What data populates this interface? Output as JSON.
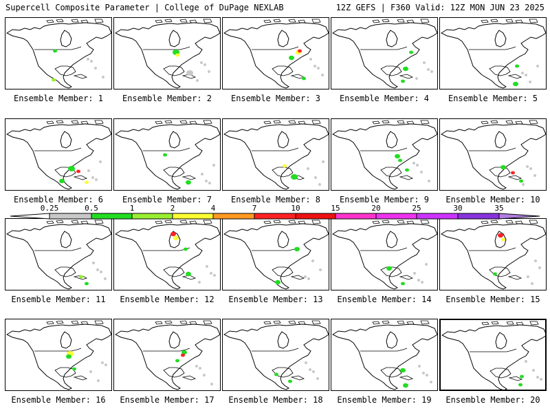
{
  "header": {
    "title_left": "Supercell Composite Parameter | College of DuPage NEXLAB",
    "title_right": "12Z GEFS | F360 Valid: 12Z MON JUN 23 2025"
  },
  "legend": {
    "levels": [
      "0.25",
      "0.5",
      "1",
      "2",
      "4",
      "7",
      "10",
      "15",
      "20",
      "25",
      "30",
      "35"
    ],
    "colors": [
      "#c8c8c8",
      "#22dd22",
      "#99ee33",
      "#ffff33",
      "#ff9922",
      "#ff2222",
      "#ee1111",
      "#ff33cc",
      "#ee33ee",
      "#cc33ff",
      "#8833dd",
      "#b07fe0",
      "#33dddd"
    ]
  },
  "members": [
    {
      "label": "Ensemble Member: 1"
    },
    {
      "label": "Ensemble Member: 2"
    },
    {
      "label": "Ensemble Member: 3"
    },
    {
      "label": "Ensemble Member: 4"
    },
    {
      "label": "Ensemble Member: 5"
    },
    {
      "label": "Ensemble Member: 6"
    },
    {
      "label": "Ensemble Member: 7"
    },
    {
      "label": "Ensemble Member: 8"
    },
    {
      "label": "Ensemble Member: 9"
    },
    {
      "label": "Ensemble Member: 10"
    },
    {
      "label": "Ensemble Member: 11"
    },
    {
      "label": "Ensemble Member: 12"
    },
    {
      "label": "Ensemble Member: 13"
    },
    {
      "label": "Ensemble Member: 14"
    },
    {
      "label": "Ensemble Member: 15"
    },
    {
      "label": "Ensemble Member: 16"
    },
    {
      "label": "Ensemble Member: 17"
    },
    {
      "label": "Ensemble Member: 18"
    },
    {
      "label": "Ensemble Member: 19"
    },
    {
      "label": "Ensemble Member: 20",
      "selected": true
    }
  ]
}
